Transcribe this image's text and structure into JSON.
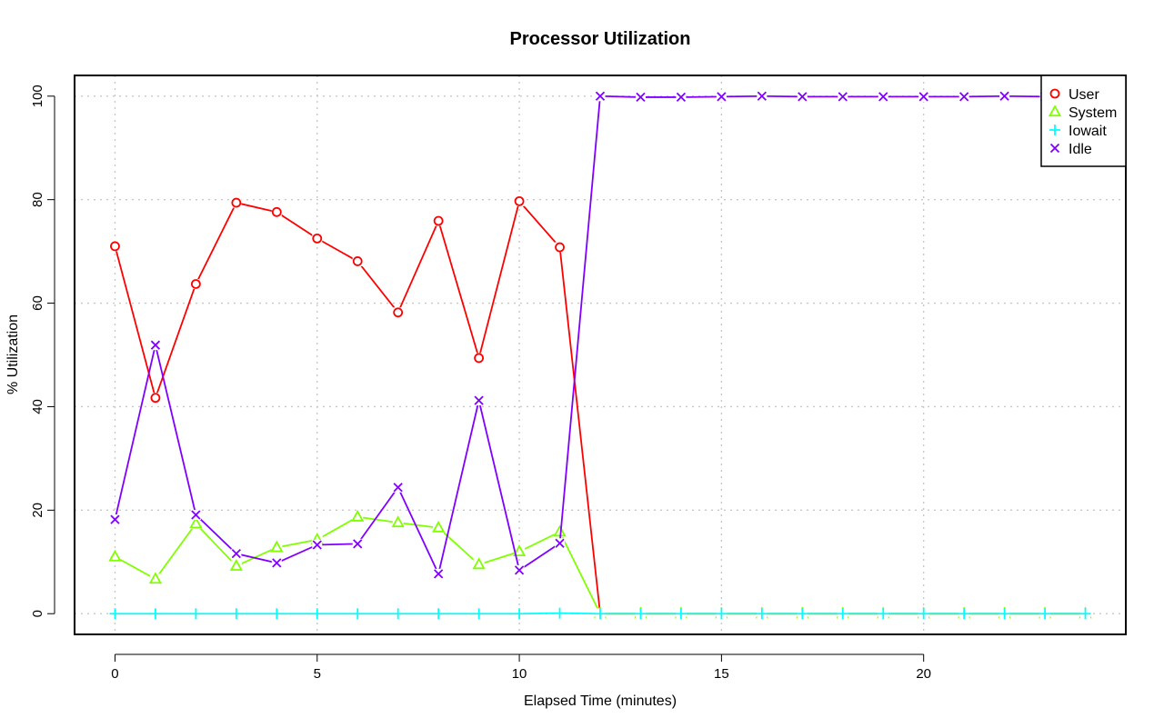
{
  "chart_data": {
    "type": "line",
    "title": "Processor Utilization",
    "xlabel": "Elapsed Time (minutes)",
    "ylabel": "% Utilization",
    "xlim": [
      -1,
      25
    ],
    "ylim": [
      -4,
      104
    ],
    "x_ticks": [
      0,
      5,
      10,
      15,
      20
    ],
    "y_ticks": [
      0,
      20,
      40,
      60,
      80,
      100
    ],
    "grid": true,
    "legend_position": "top-right",
    "x": [
      0,
      1,
      2,
      3,
      4,
      5,
      6,
      7,
      8,
      9,
      10,
      11,
      12,
      13,
      14,
      15,
      16,
      17,
      18,
      19,
      20,
      21,
      22,
      23,
      24
    ],
    "series": [
      {
        "name": "User",
        "color": "#ff0000",
        "marker": "circle",
        "values": [
          71,
          41.7,
          63.7,
          79.4,
          77.6,
          72.5,
          68.1,
          58.2,
          75.9,
          49.4,
          79.7,
          70.8,
          0,
          0,
          0,
          0,
          0,
          0,
          0,
          0,
          0,
          0,
          0,
          0,
          0
        ]
      },
      {
        "name": "System",
        "color": "#80ff00",
        "marker": "triangle",
        "values": [
          11,
          6.7,
          17.4,
          9.2,
          12.8,
          14.3,
          18.7,
          17.6,
          16.6,
          9.5,
          12,
          15.8,
          0,
          0,
          0,
          0,
          0,
          0,
          0,
          0,
          0,
          0,
          0,
          0,
          0
        ]
      },
      {
        "name": "Iowait",
        "color": "#00ffff",
        "marker": "plus",
        "values": [
          0,
          0,
          0,
          0,
          0,
          0,
          0,
          0,
          0,
          0,
          0,
          0.1,
          0,
          0,
          0,
          0,
          0,
          0,
          0,
          0,
          0,
          0,
          0,
          0,
          0
        ]
      },
      {
        "name": "Idle",
        "color": "#8000ff",
        "marker": "cross",
        "values": [
          18.2,
          51.9,
          19.1,
          11.6,
          9.8,
          13.3,
          13.5,
          24.4,
          7.7,
          41.2,
          8.4,
          13.6,
          100,
          99.8,
          99.8,
          99.9,
          100,
          99.9,
          99.9,
          99.9,
          99.9,
          99.9,
          100,
          99.9,
          100
        ]
      }
    ]
  }
}
